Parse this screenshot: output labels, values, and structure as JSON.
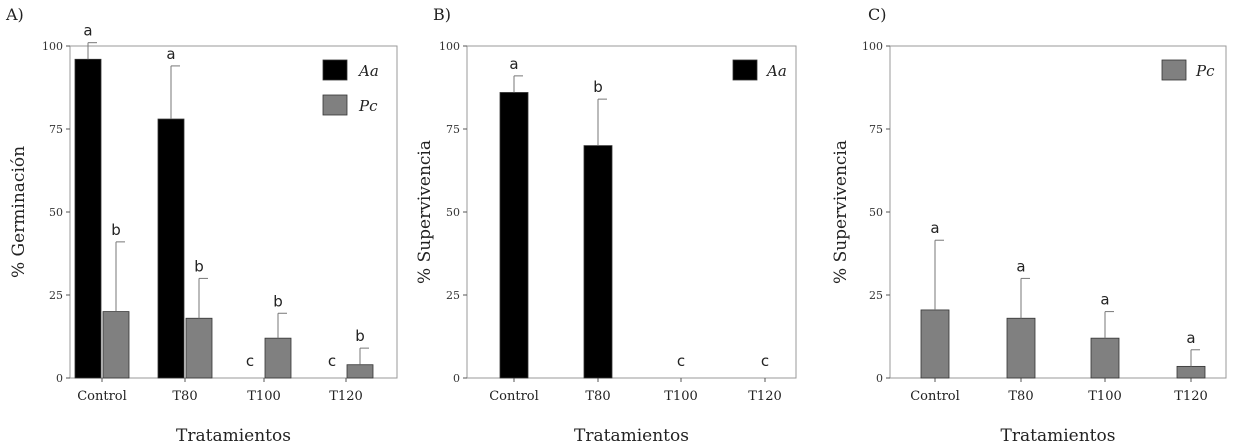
{
  "chart_data": [
    {
      "type": "bar",
      "panel_label": "A)",
      "ylabel": "% Germinación",
      "xlabel": "Tratamientos",
      "ylim": [
        0,
        100
      ],
      "yticks": [
        "0",
        "25",
        "50",
        "75",
        "100"
      ],
      "categories": [
        "Control",
        "T80",
        "T100",
        "T120"
      ],
      "legend_position": "top-right",
      "series": [
        {
          "name": "Aa",
          "color": "#000000",
          "values": [
            96,
            78,
            0,
            0
          ],
          "errors": [
            5,
            16,
            0,
            0
          ],
          "letters": [
            "a",
            "a",
            "c",
            "c"
          ]
        },
        {
          "name": "Pc",
          "color": "#808080",
          "values": [
            20,
            18,
            12,
            4
          ],
          "errors": [
            21,
            12,
            7.5,
            5
          ],
          "letters": [
            "b",
            "b",
            "b",
            "b"
          ]
        }
      ]
    },
    {
      "type": "bar",
      "panel_label": "B)",
      "ylabel": "% Supervivencia",
      "xlabel": "Tratamientos",
      "ylim": [
        0,
        100
      ],
      "yticks": [
        "0",
        "25",
        "50",
        "75",
        "100"
      ],
      "categories": [
        "Control",
        "T80",
        "T100",
        "T120"
      ],
      "legend_position": "top-right",
      "series": [
        {
          "name": "Aa",
          "color": "#000000",
          "values": [
            86,
            70,
            0,
            0
          ],
          "errors": [
            5,
            14,
            0,
            0
          ],
          "letters": [
            "a",
            "b",
            "c",
            "c"
          ]
        }
      ]
    },
    {
      "type": "bar",
      "panel_label": "C)",
      "ylabel": "% Supervivencia",
      "xlabel": "Tratamientos",
      "ylim": [
        0,
        100
      ],
      "yticks": [
        "0",
        "25",
        "50",
        "75",
        "100"
      ],
      "categories": [
        "Control",
        "T80",
        "T100",
        "T120"
      ],
      "legend_position": "top-right",
      "series": [
        {
          "name": "Pc",
          "color": "#808080",
          "values": [
            20.5,
            18,
            12,
            3.5
          ],
          "errors": [
            21,
            12,
            8,
            5
          ],
          "letters": [
            "a",
            "a",
            "a",
            "a"
          ]
        }
      ]
    }
  ]
}
